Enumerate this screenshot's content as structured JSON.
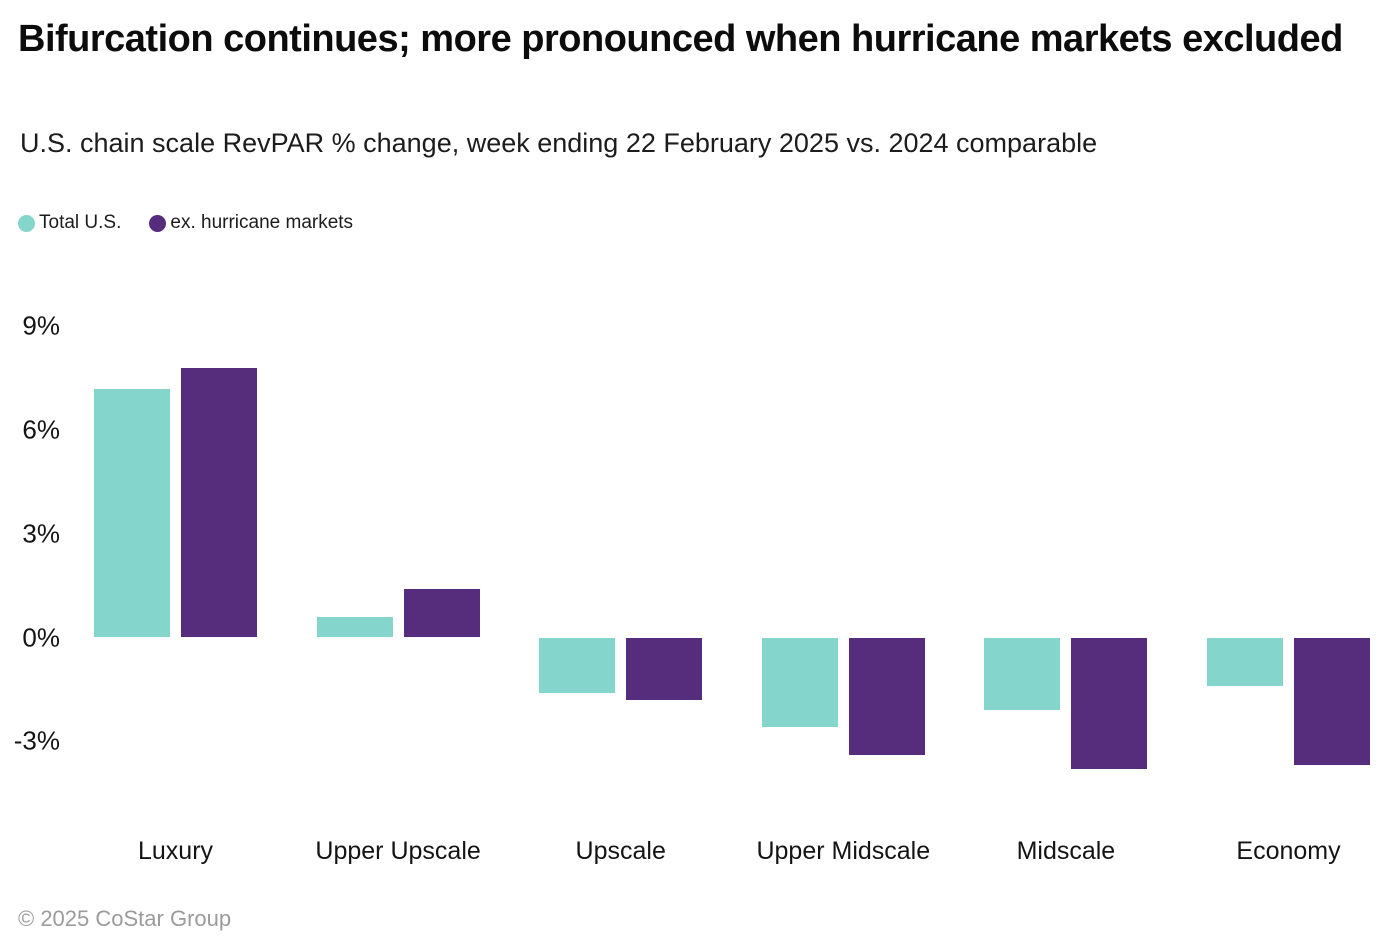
{
  "footer": "© 2025 CoStar Group",
  "chart_data": {
    "type": "bar",
    "title": "Bifurcation continues; more pronounced when hurricane markets excluded",
    "subtitle": "U.S. chain scale RevPAR % change, week ending 22 February 2025 vs. 2024 comparable",
    "categories": [
      "Luxury",
      "Upper Upscale",
      "Upscale",
      "Upper Midscale",
      "Midscale",
      "Economy"
    ],
    "series": [
      {
        "name": "Total U.S.",
        "color": "#84D6CD",
        "values": [
          7.2,
          0.6,
          -1.6,
          -2.6,
          -2.1,
          -1.4
        ]
      },
      {
        "name": "ex. hurricane markets",
        "color": "#562C7D",
        "values": [
          7.8,
          1.4,
          -1.8,
          -3.4,
          -3.8,
          -3.7
        ]
      }
    ],
    "unit": "%",
    "yticks": [
      9,
      6,
      3,
      0,
      -3
    ],
    "ytick_labels": [
      "9%",
      "6%",
      "3%",
      "0%",
      "-3%"
    ],
    "ylim": [
      -4.6,
      9.8
    ],
    "grid": false,
    "axis_lines": false,
    "legend_position": "top-left",
    "bar_baseline": 0
  }
}
